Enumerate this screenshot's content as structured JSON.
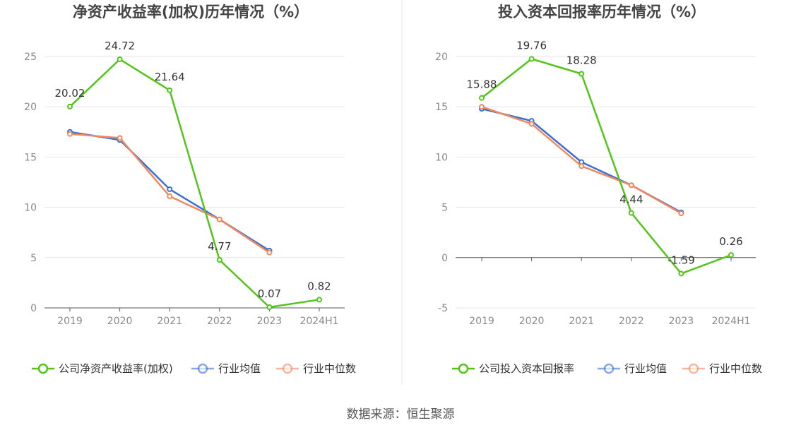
{
  "source_text": "数据来源：恒生聚源",
  "chart_data": [
    {
      "type": "line",
      "title": "净资产收益率(加权)历年情况（%）",
      "categories": [
        "2019",
        "2020",
        "2021",
        "2022",
        "2023",
        "2024H1"
      ],
      "ylim": [
        0,
        25
      ],
      "yticks": [
        0,
        5,
        10,
        15,
        20,
        25
      ],
      "series": [
        {
          "name": "公司净资产收益率(加权)",
          "color": "#52c41a",
          "values": [
            20.02,
            24.72,
            21.64,
            4.77,
            0.07,
            0.82
          ],
          "labels": [
            "20.02",
            "24.72",
            "21.64",
            "4.77",
            "0.07",
            "0.82"
          ]
        },
        {
          "name": "行业均值",
          "color": "#3a6fd8",
          "values": [
            17.5,
            16.7,
            11.8,
            8.8,
            5.7,
            null
          ]
        },
        {
          "name": "行业中位数",
          "color": "#f08a5d",
          "values": [
            17.3,
            16.9,
            11.1,
            8.8,
            5.5,
            null
          ]
        }
      ]
    },
    {
      "type": "line",
      "title": "投入资本回报率历年情况（%）",
      "categories": [
        "2019",
        "2020",
        "2021",
        "2022",
        "2023",
        "2024H1"
      ],
      "ylim": [
        -5,
        20
      ],
      "yticks": [
        -5,
        0,
        5,
        10,
        15,
        20
      ],
      "series": [
        {
          "name": "公司投入资本回报率",
          "color": "#52c41a",
          "values": [
            15.88,
            19.76,
            18.28,
            4.44,
            -1.59,
            0.26
          ],
          "labels": [
            "15.88",
            "19.76",
            "18.28",
            "4.44",
            "-1.59",
            "0.26"
          ]
        },
        {
          "name": "行业均值",
          "color": "#3a6fd8",
          "values": [
            14.8,
            13.6,
            9.5,
            7.2,
            4.5,
            null
          ]
        },
        {
          "name": "行业中位数",
          "color": "#f08a5d",
          "values": [
            15.0,
            13.3,
            9.1,
            7.2,
            4.4,
            null
          ]
        }
      ]
    }
  ]
}
